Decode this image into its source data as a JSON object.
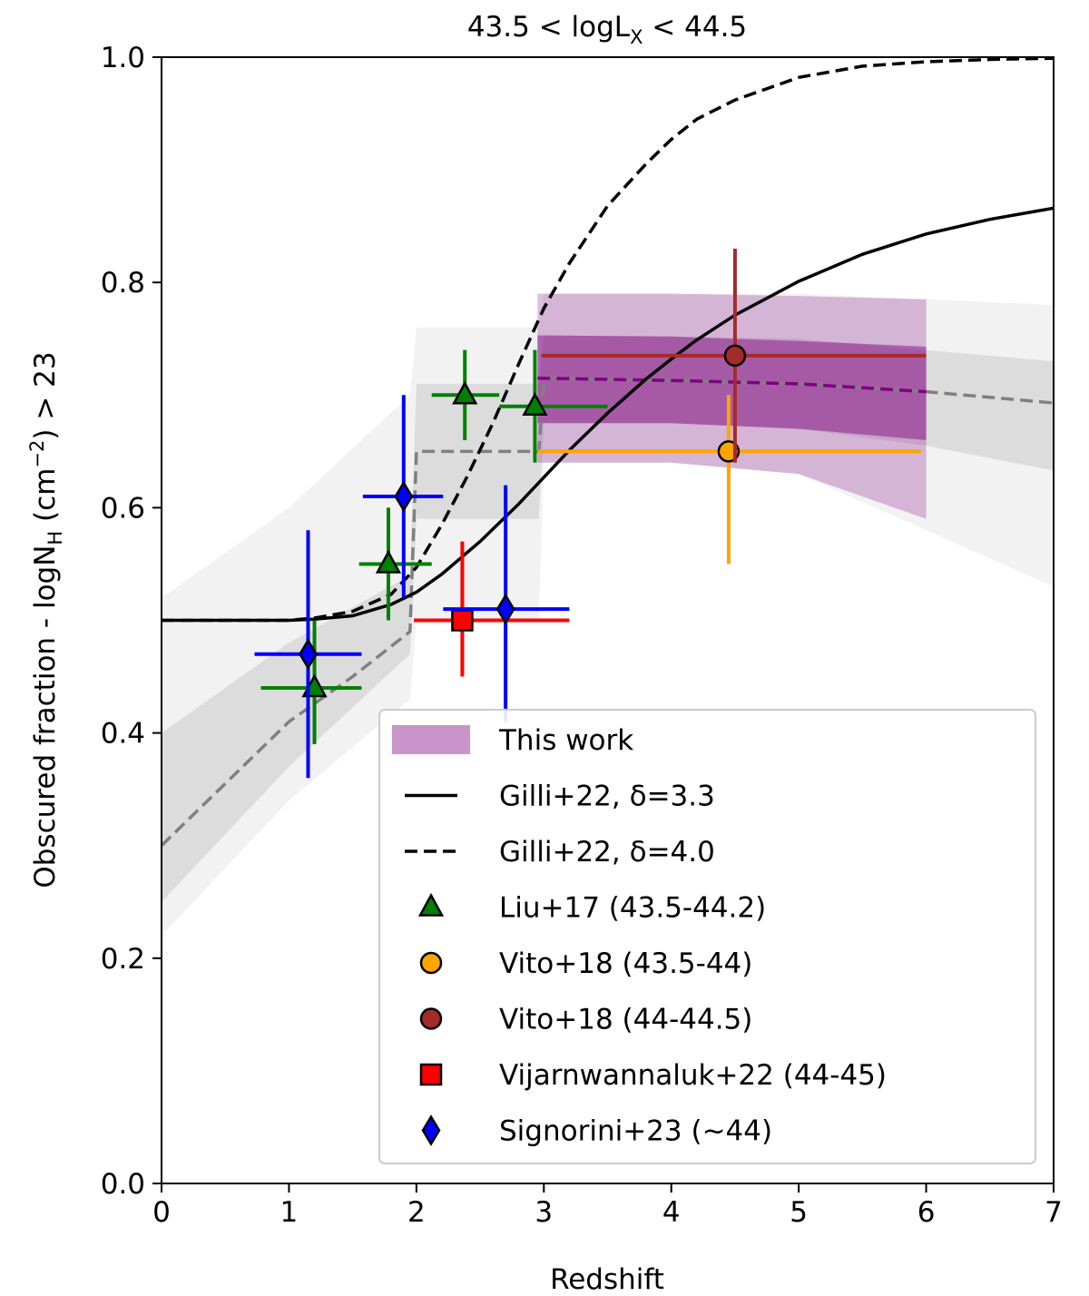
{
  "chart_data": {
    "type": "scatter",
    "title": "43.5 < logL",
    "title_sub": "X",
    "title_tail": " < 44.5",
    "xlabel": "Redshift",
    "ylabel_main": "Obscured fraction - logN",
    "ylabel_sub": "H",
    "ylabel_unit": " (cm",
    "ylabel_sup": "−2",
    "ylabel_tail": ") > 23",
    "xlim": [
      0,
      7
    ],
    "ylim": [
      0,
      1
    ],
    "xticks": [
      0,
      1,
      2,
      3,
      4,
      5,
      6,
      7
    ],
    "yticks": [
      0.0,
      0.2,
      0.4,
      0.6,
      0.8,
      1.0
    ],
    "xtick_labels": [
      "0",
      "1",
      "2",
      "3",
      "4",
      "5",
      "6",
      "7"
    ],
    "ytick_labels": [
      "0.0",
      "0.2",
      "0.4",
      "0.6",
      "0.8",
      "1.0"
    ],
    "legend_position": "lower-right",
    "colors": {
      "liu": "#008000",
      "vito1": "#ffa500",
      "vito2": "#a52a2a",
      "vijar": "#ff0000",
      "signorini": "#0000ff",
      "this_work": "#800080",
      "model_grey": "#808080"
    },
    "legend": [
      {
        "label": "This work",
        "kind": "band"
      },
      {
        "label": "Gilli+22, δ=3.3",
        "kind": "solid"
      },
      {
        "label": "Gilli+22, δ=4.0",
        "kind": "dashed"
      },
      {
        "label": "Liu+17 (43.5-44.2)",
        "kind": "triangle",
        "color": "#008000"
      },
      {
        "label": "Vito+18 (43.5-44)",
        "kind": "circle",
        "color": "#ffa500"
      },
      {
        "label": "Vito+18 (44-44.5)",
        "kind": "circle",
        "color": "#a52a2a"
      },
      {
        "label": "Vijarnwannaluk+22 (44-45)",
        "kind": "square",
        "color": "#ff0000"
      },
      {
        "label": "Signorini+23 (~44)",
        "kind": "diamond",
        "color": "#0000ff"
      }
    ],
    "series": [
      {
        "name": "Liu+17 (43.5-44.2)",
        "marker": "triangle",
        "color": "#008000",
        "points": [
          {
            "x": 1.2,
            "y": 0.44,
            "xlo": 0.78,
            "xhi": 1.57,
            "ylo": 0.39,
            "yhi": 0.5
          },
          {
            "x": 1.78,
            "y": 0.55,
            "xlo": 1.55,
            "xhi": 2.12,
            "ylo": 0.5,
            "yhi": 0.6
          },
          {
            "x": 2.38,
            "y": 0.7,
            "xlo": 2.12,
            "xhi": 2.65,
            "ylo": 0.66,
            "yhi": 0.74
          },
          {
            "x": 2.93,
            "y": 0.69,
            "xlo": 2.65,
            "xhi": 3.5,
            "ylo": 0.64,
            "yhi": 0.74
          }
        ]
      },
      {
        "name": "Vito+18 (43.5-44)",
        "marker": "circle",
        "color": "#ffa500",
        "points": [
          {
            "x": 4.45,
            "y": 0.65,
            "xlo": 2.95,
            "xhi": 5.96,
            "ylo": 0.55,
            "yhi": 0.7
          }
        ]
      },
      {
        "name": "Vito+18 (44-44.5)",
        "marker": "circle",
        "color": "#a52a2a",
        "points": [
          {
            "x": 4.5,
            "y": 0.735,
            "xlo": 2.98,
            "xhi": 6.0,
            "ylo": 0.64,
            "yhi": 0.83
          }
        ]
      },
      {
        "name": "Vijarnwannaluk+22 (44-45)",
        "marker": "square",
        "color": "#ff0000",
        "points": [
          {
            "x": 2.36,
            "y": 0.5,
            "xlo": 1.98,
            "xhi": 3.2,
            "ylo": 0.45,
            "yhi": 0.57
          }
        ]
      },
      {
        "name": "Signorini+23 (~44)",
        "marker": "diamond",
        "color": "#0000ff",
        "points": [
          {
            "x": 1.15,
            "y": 0.47,
            "xlo": 0.73,
            "xhi": 1.57,
            "ylo": 0.36,
            "yhi": 0.58
          },
          {
            "x": 1.9,
            "y": 0.61,
            "xlo": 1.58,
            "xhi": 2.21,
            "ylo": 0.52,
            "yhi": 0.7
          },
          {
            "x": 2.7,
            "y": 0.51,
            "xlo": 2.21,
            "xhi": 3.2,
            "ylo": 0.41,
            "yhi": 0.62
          }
        ]
      }
    ],
    "gilli_33": {
      "x": [
        0,
        0.5,
        1.0,
        1.2,
        1.5,
        1.8,
        2.0,
        2.2,
        2.5,
        2.8,
        3.0,
        3.2,
        3.5,
        3.8,
        4.0,
        4.2,
        4.5,
        5.0,
        5.5,
        6.0,
        6.5,
        7.0
      ],
      "y": [
        0.5,
        0.5,
        0.5,
        0.501,
        0.504,
        0.514,
        0.525,
        0.541,
        0.57,
        0.603,
        0.627,
        0.651,
        0.684,
        0.714,
        0.732,
        0.749,
        0.771,
        0.801,
        0.825,
        0.843,
        0.856,
        0.866
      ]
    },
    "gilli_40": {
      "x": [
        0,
        0.5,
        1.0,
        1.2,
        1.5,
        1.8,
        2.0,
        2.2,
        2.4,
        2.6,
        2.8,
        3.0,
        3.2,
        3.5,
        3.8,
        4.0,
        4.2,
        4.5,
        5.0,
        5.5,
        6.0,
        6.5,
        7.0
      ],
      "y": [
        0.5,
        0.5,
        0.5,
        0.502,
        0.508,
        0.523,
        0.547,
        0.585,
        0.628,
        0.675,
        0.727,
        0.777,
        0.817,
        0.868,
        0.905,
        0.927,
        0.945,
        0.962,
        0.982,
        0.992,
        0.996,
        0.998,
        0.999
      ]
    },
    "model_dashed_grey": {
      "x": [
        0,
        1.0,
        1.5,
        1.95,
        2.0,
        2.5,
        2.96,
        3.0,
        4.0,
        5.0,
        6.0,
        7.0
      ],
      "y": [
        0.3,
        0.41,
        0.45,
        0.49,
        0.65,
        0.65,
        0.65,
        0.715,
        0.713,
        0.71,
        0.703,
        0.693
      ]
    },
    "model_band_outer": {
      "x": [
        0,
        1.0,
        1.95,
        2.0,
        2.96,
        3.0,
        4.0,
        5.0,
        6.0,
        7.0
      ],
      "lo": [
        0.22,
        0.34,
        0.43,
        0.5,
        0.5,
        0.64,
        0.64,
        0.63,
        0.58,
        0.53
      ],
      "hi": [
        0.52,
        0.6,
        0.7,
        0.76,
        0.76,
        0.79,
        0.79,
        0.79,
        0.785,
        0.78
      ]
    },
    "model_band_inner": {
      "x": [
        0,
        1.0,
        1.95,
        2.0,
        2.96,
        3.0,
        4.0,
        5.0,
        6.0,
        7.0
      ],
      "lo": [
        0.25,
        0.37,
        0.47,
        0.59,
        0.59,
        0.675,
        0.675,
        0.67,
        0.655,
        0.633
      ],
      "hi": [
        0.4,
        0.48,
        0.54,
        0.71,
        0.71,
        0.753,
        0.752,
        0.75,
        0.74,
        0.73
      ]
    },
    "this_work": {
      "x": [
        2.95,
        4.0,
        5.0,
        6.0
      ],
      "y": [
        0.715,
        0.713,
        0.71,
        0.703
      ],
      "lo_outer": [
        0.64,
        0.64,
        0.63,
        0.59
      ],
      "hi_outer": [
        0.79,
        0.79,
        0.788,
        0.785
      ],
      "lo_inner": [
        0.675,
        0.675,
        0.67,
        0.66
      ],
      "hi_inner": [
        0.753,
        0.752,
        0.748,
        0.743
      ]
    }
  }
}
